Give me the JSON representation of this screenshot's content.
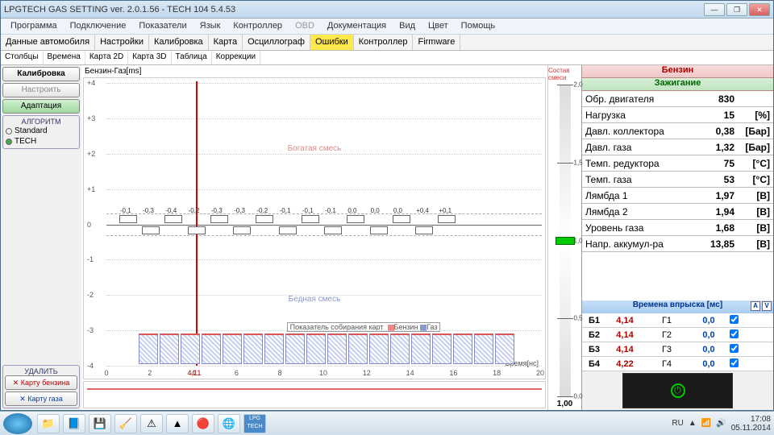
{
  "title": "LPGTECH GAS SETTING ver. 2.0.1.56  -  TECH 104   5.4.53",
  "menu": [
    "Программа",
    "Подключение",
    "Показатели",
    "Язык",
    "Контроллер",
    "OBD",
    "Документация",
    "Вид",
    "Цвет",
    "Помощь"
  ],
  "menu_disabled": [
    5
  ],
  "top_tabs": [
    "Данные автомобиля",
    "Настройки",
    "Калибровка",
    "Карта",
    "Осциллограф",
    "Ошибки",
    "Контроллер",
    "Firmware"
  ],
  "top_tab_hl": 5,
  "sub_tabs": [
    "Столбцы",
    "Времена",
    "Карта 2D",
    "Карта 3D",
    "Таблица",
    "Коррекции"
  ],
  "left": {
    "calib": "Калибровка",
    "adjust": "Настроить",
    "adapt": "Адаптация",
    "algo_title": "АЛГОРИТМ",
    "algo": [
      "Standard",
      "TECH"
    ],
    "delete_title": "УДАЛИТЬ",
    "del1": "Карту бензина",
    "del2": "Карту газа"
  },
  "chart": {
    "ylabel": "Бензин-Газ[ms]",
    "ymin": -4,
    "ymax": 4,
    "rich": "Богатая смесь",
    "lean": "Бедная смесь",
    "collect": "Показатель собирания карт",
    "leg_b": "Бензин",
    "leg_g": "Газ",
    "xtitle": "Время[нс]",
    "xticks": [
      0,
      2,
      4,
      6,
      8,
      10,
      12,
      14,
      16,
      18,
      20
    ],
    "red_x": "4,11",
    "vals": [
      "-0,1",
      "-0,3",
      "-0,4",
      "-0,2",
      "-0,3",
      "-0,3",
      "-0,2",
      "-0,1",
      "-0,1",
      "-0,1",
      "0,0",
      "0,0",
      "0,0",
      "+0,4",
      "+0,1"
    ]
  },
  "gauge": {
    "title": "Состав смеси",
    "ticks": [
      "2,0",
      "1,5",
      "1,0",
      "0,5",
      "0,0"
    ],
    "value": "1,00"
  },
  "right": {
    "hdr1": "Бензин",
    "hdr2": "Зажигание",
    "rows": [
      {
        "k": "Обр. двигателя",
        "v": "830",
        "u": ""
      },
      {
        "k": "Нагрузка",
        "v": "15",
        "u": "[%]"
      },
      {
        "k": "Давл. коллектора",
        "v": "0,38",
        "u": "[Бар]"
      },
      {
        "k": "Давл. газа",
        "v": "1,32",
        "u": "[Бар]"
      },
      {
        "k": "Темп. редуктора",
        "v": "75",
        "u": "[°C]"
      },
      {
        "k": "Темп. газа",
        "v": "53",
        "u": "[°C]"
      },
      {
        "k": "Лямбда 1",
        "v": "1,97",
        "u": "[В]"
      },
      {
        "k": "Лямбда 2",
        "v": "1,94",
        "u": "[В]"
      },
      {
        "k": "Уровень газа",
        "v": "1,68",
        "u": "[В]"
      },
      {
        "k": "Напр. аккумул-ра",
        "v": "13,85",
        "u": "[В]"
      }
    ],
    "inj_hdr": "Времена впрыска [мс]",
    "inj": [
      {
        "b": "Б1",
        "bv": "4,14",
        "g": "Г1",
        "gv": "0,0"
      },
      {
        "b": "Б2",
        "bv": "4,14",
        "g": "Г2",
        "gv": "0,0"
      },
      {
        "b": "Б3",
        "bv": "4,14",
        "g": "Г3",
        "gv": "0,0"
      },
      {
        "b": "Б4",
        "bv": "4,22",
        "g": "Г4",
        "gv": "0,0"
      }
    ]
  },
  "tray": {
    "lang": "RU",
    "time": "17:08",
    "date": "05.11.2014"
  }
}
